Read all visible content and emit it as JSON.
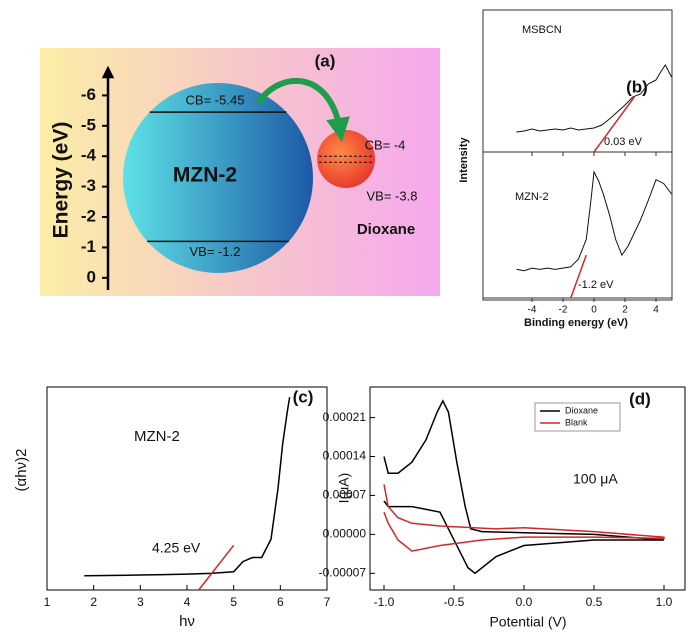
{
  "chart_data": [
    {
      "type": "energy-diagram",
      "title": "(a)",
      "ylabel": "Energy (eV)",
      "ylim": [
        0.4,
        -7
      ],
      "yticks": [
        -6,
        -5,
        -4,
        -3,
        -2,
        -1,
        0
      ],
      "materials": [
        {
          "name": "MZN-2",
          "cb": -5.45,
          "vb": -1.2,
          "cb_label": "CB= -5.45",
          "vb_label": "VB= -1.2"
        },
        {
          "name": "Dioxane",
          "cb": -4,
          "vb": -3.8,
          "cb_label": "CB= -4",
          "vb_label": "VB= -3.8"
        }
      ]
    },
    {
      "type": "xps",
      "title": "(b)",
      "xlabel": "Binding energy (eV)",
      "ylabel": "Intensity",
      "xlim": [
        -7,
        5
      ],
      "xticks": [
        -4,
        -2,
        0,
        2,
        4
      ],
      "panels": [
        {
          "label": "MSBCN",
          "ylim": [
            0,
            1
          ],
          "annotation": "0.03 eV",
          "x": [
            -5,
            -4.5,
            -4,
            -3.5,
            -3,
            -2.5,
            -2,
            -1.5,
            -1,
            -0.5,
            0,
            0.5,
            1,
            1.5,
            2,
            2.5,
            3,
            3.5,
            4,
            4.3,
            4.6,
            5
          ],
          "values": [
            0.2,
            0.21,
            0.23,
            0.21,
            0.22,
            0.23,
            0.22,
            0.24,
            0.22,
            0.23,
            0.24,
            0.27,
            0.33,
            0.4,
            0.47,
            0.55,
            0.58,
            0.68,
            0.72,
            0.8,
            0.87,
            0.75
          ],
          "fit": {
            "x": [
              0,
              2.6
            ],
            "values": [
              0,
              0.55
            ],
            "color": "#d62728"
          }
        },
        {
          "label": "MZN-2",
          "ylim": [
            0,
            1
          ],
          "annotation": "-1.2 eV",
          "x": [
            -5,
            -4.5,
            -4,
            -3.5,
            -3,
            -2.5,
            -2,
            -1.5,
            -1,
            -0.5,
            -0.2,
            0,
            0.3,
            0.6,
            1,
            1.4,
            1.8,
            2.2,
            2.6,
            3,
            3.5,
            4,
            4.5,
            5
          ],
          "values": [
            0.22,
            0.21,
            0.23,
            0.22,
            0.23,
            0.22,
            0.23,
            0.24,
            0.3,
            0.45,
            0.75,
            0.97,
            0.9,
            0.8,
            0.64,
            0.45,
            0.33,
            0.4,
            0.5,
            0.6,
            0.75,
            0.91,
            0.88,
            0.8
          ],
          "fit": {
            "x": [
              -1.5,
              -0.5
            ],
            "values": [
              0,
              0.33
            ],
            "color": "#d62728"
          }
        }
      ]
    },
    {
      "type": "line",
      "title": "(c)",
      "xlabel": "hν",
      "ylabel": "(αhν)2",
      "label": "MZN-2",
      "annotation": "4.25 eV",
      "xlim": [
        1,
        7
      ],
      "xticks": [
        1,
        2,
        3,
        4,
        5,
        6,
        7
      ],
      "ylim": [
        0,
        1
      ],
      "x": [
        1.8,
        2.5,
        3,
        3.5,
        4,
        4.5,
        5,
        5.2,
        5.4,
        5.6,
        5.8,
        5.95,
        6.05,
        6.15,
        6.2
      ],
      "values": [
        0.07,
        0.072,
        0.074,
        0.076,
        0.078,
        0.082,
        0.09,
        0.14,
        0.16,
        0.16,
        0.25,
        0.5,
        0.72,
        0.88,
        0.95
      ],
      "color": "#000000",
      "fit": {
        "x": [
          4.25,
          5.0
        ],
        "values": [
          0,
          0.22
        ],
        "color": "#d62728"
      }
    },
    {
      "type": "cv",
      "title": "(d)",
      "xlabel": "Potential (V)",
      "ylabel": "I(μA)",
      "annotation": "100 μA",
      "xlim": [
        -1.1,
        1.15
      ],
      "xticks": [
        {
          "value": -1,
          "label": "-1.0"
        },
        -0.5,
        {
          "value": 0,
          "label": "0.0"
        },
        0.5,
        {
          "value": 1,
          "label": "1.0"
        }
      ],
      "ylim": [
        -0.0001,
        0.000265
      ],
      "yticks": [
        -7e-05,
        {
          "value": 0,
          "label": "0.00000"
        },
        7e-05,
        0.00014,
        0.00021
      ],
      "series": [
        {
          "name": "Dioxane",
          "color": "#000000",
          "x": [
            -1.0,
            -0.97,
            -0.9,
            -0.8,
            -0.7,
            -0.62,
            -0.58,
            -0.54,
            -0.48,
            -0.42,
            -0.38,
            -0.3,
            0,
            0.5,
            1.0,
            1.0,
            0.5,
            0,
            -0.2,
            -0.3,
            -0.35,
            -0.4,
            -0.5,
            -0.6,
            -0.8,
            -0.97,
            -1.0
          ],
          "values": [
            0.00014,
            0.00011,
            0.00011,
            0.00013,
            0.00017,
            0.00022,
            0.00024,
            0.00022,
            0.00013,
            5e-05,
            1e-05,
            5e-06,
            3e-06,
            0,
            -1e-05,
            -1e-05,
            -1e-05,
            -2e-05,
            -4e-05,
            -6e-05,
            -7e-05,
            -6e-05,
            -1e-05,
            4e-05,
            5e-05,
            5e-05,
            6e-05
          ]
        },
        {
          "name": "Blank",
          "color": "#d62728",
          "x": [
            -1.0,
            -0.97,
            -0.9,
            -0.8,
            -0.6,
            -0.2,
            0,
            0.5,
            1.0,
            1.0,
            0.5,
            0,
            -0.3,
            -0.6,
            -0.8,
            -0.9,
            -0.97,
            -1.0
          ],
          "values": [
            9e-05,
            5e-05,
            3e-05,
            2e-05,
            1.5e-05,
            1e-05,
            1.2e-05,
            5e-06,
            -5e-06,
            -7e-06,
            -5e-06,
            -5e-06,
            -1e-05,
            -2e-05,
            -3e-05,
            -1e-05,
            2e-05,
            4e-05
          ]
        }
      ]
    }
  ]
}
